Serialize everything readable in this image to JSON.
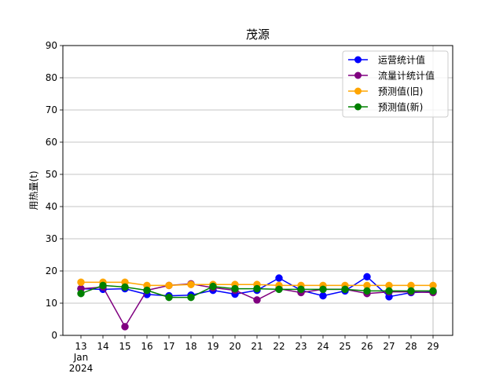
{
  "chart_data": {
    "type": "line",
    "title": "茂源",
    "xlabel": "",
    "ylabel": "用热量(t)",
    "x_tick_labels": [
      "13",
      "14",
      "15",
      "16",
      "17",
      "18",
      "19",
      "20",
      "21",
      "22",
      "23",
      "24",
      "25",
      "26",
      "27",
      "28",
      "29"
    ],
    "x_tick_sub_month": "Jan",
    "x_tick_sub_year": "2024",
    "x_dates": [
      "2024-01-13",
      "2024-01-14",
      "2024-01-15",
      "2024-01-16",
      "2024-01-17",
      "2024-01-18",
      "2024-01-19",
      "2024-01-20",
      "2024-01-21",
      "2024-01-22",
      "2024-01-23",
      "2024-01-24",
      "2024-01-25",
      "2024-01-26",
      "2024-01-27",
      "2024-01-28",
      "2024-01-29"
    ],
    "ylim": [
      0,
      90
    ],
    "y_ticks": [
      0,
      10,
      20,
      30,
      40,
      50,
      60,
      70,
      80,
      90
    ],
    "grid": true,
    "legend_position": "top-right",
    "series": [
      {
        "name": "运营统计值",
        "color": "#0000ff",
        "values": [
          14.5,
          14.3,
          14.5,
          12.7,
          12.3,
          12.5,
          14.0,
          12.8,
          14.0,
          17.8,
          14.0,
          12.3,
          13.8,
          18.2,
          12.0,
          13.3,
          13.5
        ]
      },
      {
        "name": "流量计统计值",
        "color": "#800080",
        "values": [
          14.5,
          15.0,
          2.7,
          14.0,
          15.5,
          16.0,
          14.8,
          14.0,
          11.0,
          14.5,
          13.3,
          14.3,
          14.3,
          13.0,
          13.5,
          13.5,
          13.3
        ]
      },
      {
        "name": "预测值(旧)",
        "color": "#ffa500",
        "values": [
          16.5,
          16.5,
          16.5,
          15.5,
          15.5,
          15.8,
          15.8,
          15.8,
          15.8,
          15.5,
          15.5,
          15.5,
          15.5,
          15.5,
          15.5,
          15.5,
          15.5
        ]
      },
      {
        "name": "预测值(新)",
        "color": "#008000",
        "values": [
          13.0,
          15.5,
          15.0,
          14.0,
          11.8,
          11.8,
          15.2,
          14.5,
          14.5,
          14.3,
          14.3,
          14.3,
          14.3,
          13.8,
          13.8,
          13.8,
          13.8
        ]
      }
    ]
  }
}
